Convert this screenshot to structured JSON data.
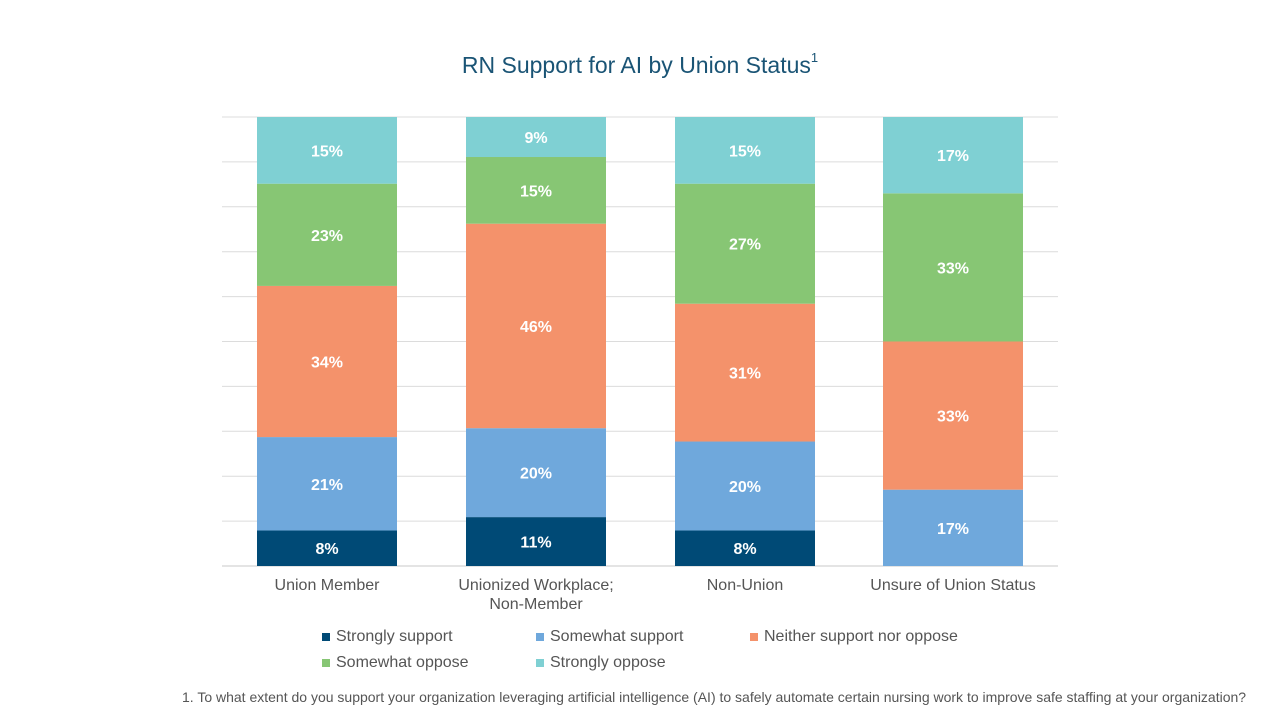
{
  "chart_data": {
    "type": "bar",
    "stacked": true,
    "title": "RN Support for AI by Union Status",
    "title_superscript": "1",
    "categories": [
      "Union Member",
      "Unionized Workplace; Non-Member",
      "Non-Union",
      "Unsure of Union Status"
    ],
    "series": [
      {
        "name": "Strongly support",
        "color": "#004a76",
        "values": [
          8,
          11,
          8,
          0
        ],
        "labels": [
          "8%",
          "11%",
          "8%",
          ""
        ]
      },
      {
        "name": "Somewhat support",
        "color": "#6fa8dc",
        "values": [
          21,
          20,
          20,
          17
        ],
        "labels": [
          "21%",
          "20%",
          "20%",
          "17%"
        ]
      },
      {
        "name": "Neither support nor oppose",
        "color": "#f4926b",
        "values": [
          34,
          46,
          31,
          33
        ],
        "labels": [
          "34%",
          "46%",
          "31%",
          "33%"
        ]
      },
      {
        "name": "Somewhat oppose",
        "color": "#87c674",
        "values": [
          23,
          15,
          27,
          33
        ],
        "labels": [
          "23%",
          "15%",
          "27%",
          "33%"
        ]
      },
      {
        "name": "Strongly oppose",
        "color": "#7fd0d3",
        "values": [
          15,
          9,
          15,
          17
        ],
        "labels": [
          "15%",
          "9%",
          "15%",
          "17%"
        ]
      }
    ],
    "ylim": [
      0,
      100
    ],
    "grid": true,
    "legend_position": "bottom",
    "footnote": "1. To what extent do you support your organization leveraging artificial intelligence (AI) to safely automate certain nursing work to improve safe staffing at your organization?"
  }
}
